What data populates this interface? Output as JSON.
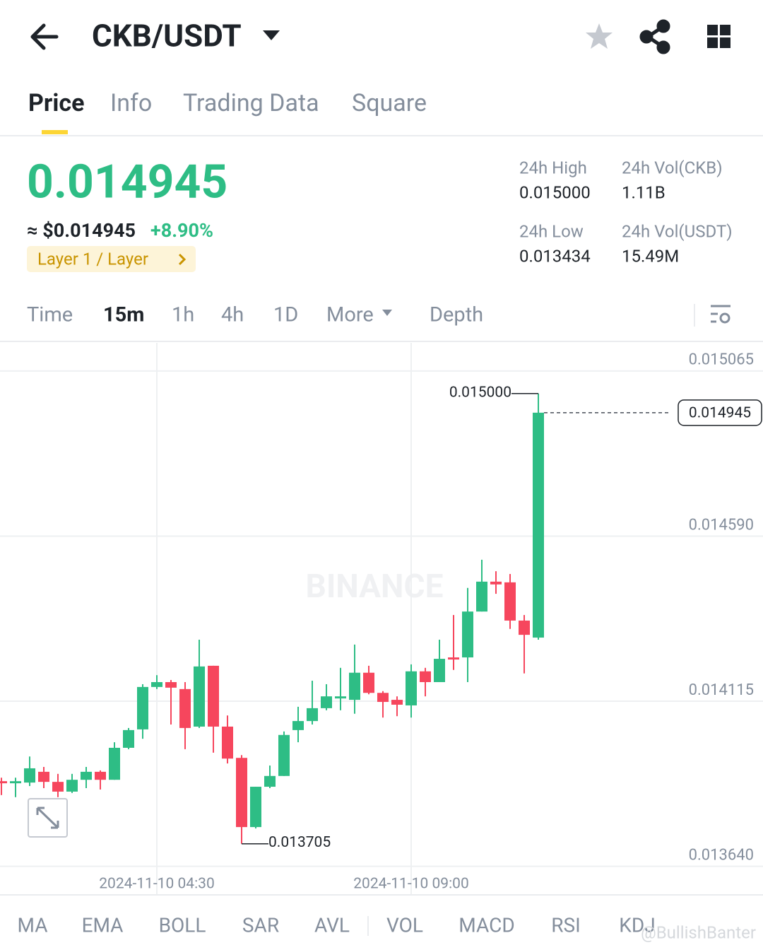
{
  "header": {
    "pair": "CKB/USDT"
  },
  "tabs": [
    "Price",
    "Info",
    "Trading Data",
    "Square"
  ],
  "price": {
    "last": "0.014945",
    "usd": "≈ $0.014945",
    "change": "+8.90%",
    "tag": "Layer 1 / Layer"
  },
  "stats": [
    {
      "label": "24h High",
      "value": "0.015000"
    },
    {
      "label": "24h Vol(CKB)",
      "value": "1.11B"
    },
    {
      "label": "24h Low",
      "value": "0.013434"
    },
    {
      "label": "24h Vol(USDT)",
      "value": "15.49M"
    }
  ],
  "intervals": [
    "Time",
    "15m",
    "1h",
    "4h",
    "1D",
    "More",
    "Depth"
  ],
  "indicators": [
    "MA",
    "EMA",
    "BOLL",
    "SAR",
    "AVL",
    "VOL",
    "MACD",
    "RSI",
    "KDJ"
  ],
  "watermark": "BINANCE",
  "credit": "@BullishBanter",
  "chart_data": {
    "type": "candlestick",
    "categories": [
      null,
      null,
      null,
      null,
      null,
      null,
      null,
      null,
      null,
      null,
      null,
      "2024-11-10 04:30",
      null,
      null,
      null,
      null,
      null,
      null,
      null,
      null,
      null,
      null,
      null,
      null,
      null,
      null,
      null,
      null,
      null,
      "2024-11-10 09:00",
      null,
      null,
      null,
      null,
      null,
      null,
      null,
      null,
      null
    ],
    "open": [
      0.013885,
      0.013879,
      0.013881,
      0.013912,
      0.013883,
      0.013855,
      0.013889,
      0.013912,
      0.013889,
      0.013981,
      0.014034,
      0.014156,
      0.01417,
      0.01415,
      0.014042,
      0.014217,
      0.014042,
      0.013952,
      0.013753,
      0.013869,
      0.0139,
      0.014032,
      0.014058,
      0.014095,
      0.014123,
      0.014119,
      0.014197,
      0.014139,
      0.014119,
      0.014103,
      0.014201,
      0.01417,
      0.014241,
      0.014241,
      0.014373,
      0.014459,
      0.014457,
      0.014347,
      0.014298
    ],
    "high": [
      0.013895,
      0.013895,
      0.013956,
      0.013926,
      0.013906,
      0.013906,
      0.013926,
      0.013916,
      0.013997,
      0.014038,
      0.014164,
      0.01419,
      0.014176,
      0.01417,
      0.014292,
      0.014217,
      0.014074,
      0.01396,
      0.013869,
      0.01393,
      0.014028,
      0.014099,
      0.014174,
      0.014164,
      0.014211,
      0.014278,
      0.014217,
      0.014144,
      0.014129,
      0.014221,
      0.014211,
      0.014292,
      0.014363,
      0.014441,
      0.014522,
      0.014489,
      0.014481,
      0.014363,
      0.015
    ],
    "low": [
      0.013845,
      0.013839,
      0.013871,
      0.013865,
      0.013839,
      0.013851,
      0.013865,
      0.013861,
      0.013889,
      0.013977,
      0.014007,
      0.01415,
      0.014048,
      0.013977,
      0.014038,
      0.013967,
      0.013936,
      0.013705,
      0.013749,
      0.013865,
      0.0139,
      0.013997,
      0.014048,
      0.014089,
      0.014089,
      0.014079,
      0.014135,
      0.014068,
      0.014072,
      0.014068,
      0.014129,
      0.01417,
      0.014205,
      0.01417,
      0.014373,
      0.014424,
      0.014323,
      0.014195,
      0.014292
    ],
    "close": [
      0.013879,
      0.013885,
      0.013922,
      0.013883,
      0.013855,
      0.013889,
      0.013912,
      0.013889,
      0.013981,
      0.014032,
      0.014156,
      0.01417,
      0.014154,
      0.014038,
      0.014215,
      0.014042,
      0.01395,
      0.013753,
      0.013869,
      0.0139,
      0.014018,
      0.014058,
      0.014095,
      0.014129,
      0.014129,
      0.014197,
      0.014139,
      0.014113,
      0.014105,
      0.014201,
      0.01417,
      0.014237,
      0.014235,
      0.014373,
      0.014459,
      0.014451,
      0.014347,
      0.014306,
      0.014945
    ],
    "up_color": "#2ebd85",
    "down_color": "#f6465d",
    "ylim": [
      0.01356,
      0.015146
    ],
    "yticks": [
      0.015065,
      {
        "value": 0.01459,
        "label": "0.014590"
      },
      0.014115,
      {
        "value": 0.01364,
        "label": "0.013640"
      }
    ],
    "high_label": "0.015000",
    "low_label": "0.013705",
    "last_label": "0.014945",
    "grid": true
  }
}
